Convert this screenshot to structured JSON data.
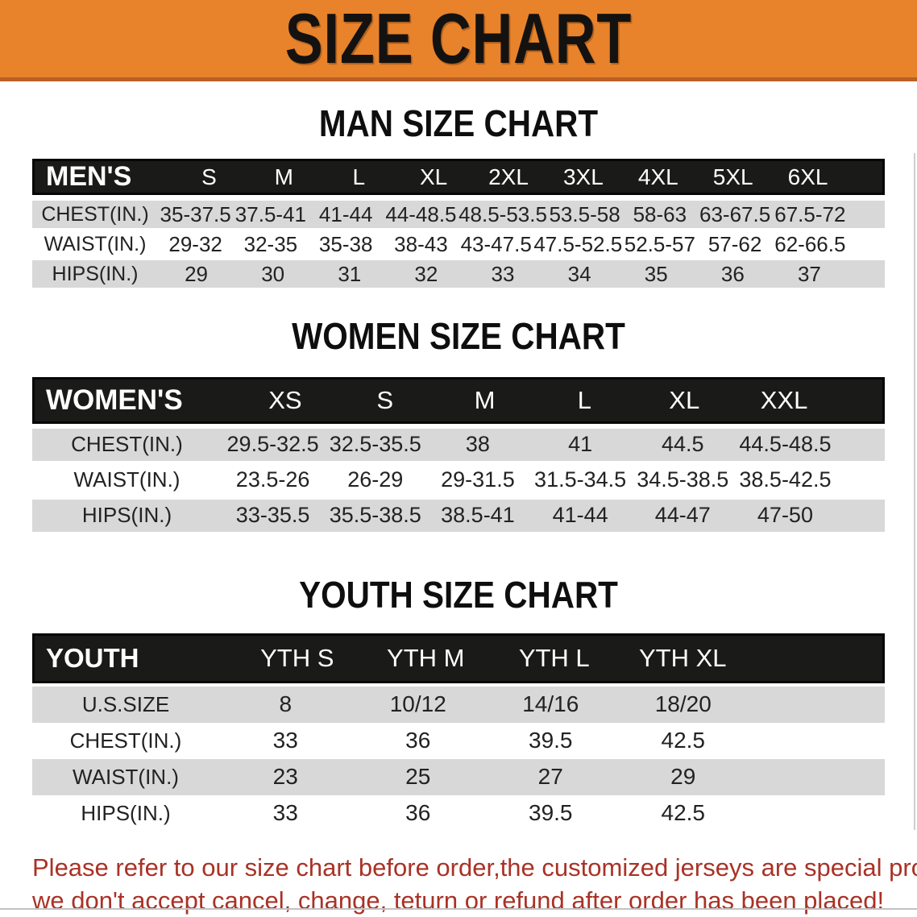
{
  "banner": {
    "title": "SIZE CHART"
  },
  "colors": {
    "banner_orange": "#e8832c",
    "banner_border": "#b96026",
    "header_black": "#1a1a18",
    "stripe_gray": "#d8d8d8",
    "notice_red": "#a93226"
  },
  "sections": {
    "men": {
      "heading": "MAN SIZE CHART",
      "table": {
        "label": "MEN'S",
        "columns": [
          "S",
          "M",
          "L",
          "XL",
          "2XL",
          "3XL",
          "4XL",
          "5XL",
          "6XL"
        ],
        "rows": [
          {
            "label": "CHEST(IN.)",
            "values": [
              "35-37.5",
              "37.5-41",
              "41-44",
              "44-48.5",
              "48.5-53.5",
              "53.5-58",
              "58-63",
              "63-67.5",
              "67.5-72"
            ]
          },
          {
            "label": "WAIST(IN.)",
            "values": [
              "29-32",
              "32-35",
              "35-38",
              "38-43",
              "43-47.5",
              "47.5-52.5",
              "52.5-57",
              "57-62",
              "62-66.5"
            ]
          },
          {
            "label": "HIPS(IN.)",
            "values": [
              "29",
              "30",
              "31",
              "32",
              "33",
              "34",
              "35",
              "36",
              "37"
            ]
          }
        ]
      }
    },
    "women": {
      "heading": "WOMEN SIZE CHART",
      "table": {
        "label": "WOMEN'S",
        "columns": [
          "XS",
          "S",
          "M",
          "L",
          "XL",
          "XXL"
        ],
        "rows": [
          {
            "label": "CHEST(IN.)",
            "values": [
              "29.5-32.5",
              "32.5-35.5",
              "38",
              "41",
              "44.5",
              "44.5-48.5"
            ]
          },
          {
            "label": "WAIST(IN.)",
            "values": [
              "23.5-26",
              "26-29",
              "29-31.5",
              "31.5-34.5",
              "34.5-38.5",
              "38.5-42.5"
            ]
          },
          {
            "label": "HIPS(IN.)",
            "values": [
              "33-35.5",
              "35.5-38.5",
              "38.5-41",
              "41-44",
              "44-47",
              "47-50"
            ]
          }
        ]
      }
    },
    "youth": {
      "heading": "YOUTH SIZE CHART",
      "table": {
        "label": "YOUTH",
        "columns": [
          "YTH S",
          "YTH M",
          "YTH L",
          "YTH XL"
        ],
        "rows": [
          {
            "label": "U.S.SIZE",
            "values": [
              "8",
              "10/12",
              "14/16",
              "18/20"
            ]
          },
          {
            "label": "CHEST(IN.)",
            "values": [
              "33",
              "36",
              "39.5",
              "42.5"
            ]
          },
          {
            "label": "WAIST(IN.)",
            "values": [
              "23",
              "25",
              "27",
              "29"
            ]
          },
          {
            "label": "HIPS(IN.)",
            "values": [
              "33",
              "36",
              "39.5",
              "42.5"
            ]
          }
        ]
      }
    }
  },
  "footer": {
    "line1": "Please refer to our size chart before order,the customized jerseys are special products,",
    "line2": "we don't accept cancel, change, teturn or refund after order has been placed!"
  }
}
